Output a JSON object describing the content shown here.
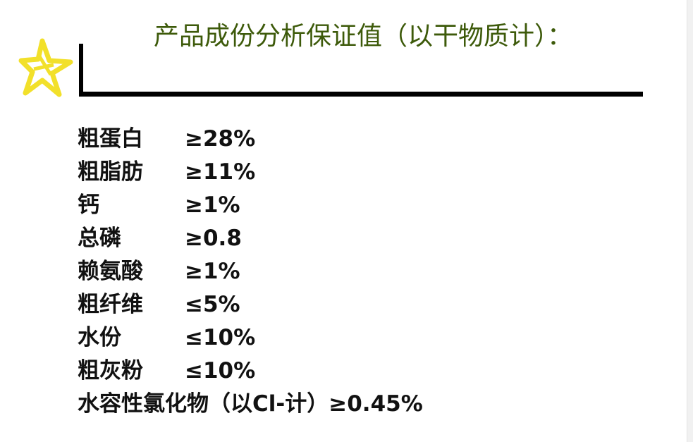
{
  "title": "产品成份分析保证值（以干物质计）：",
  "accent_color": "#3d5a0a",
  "star_color": "#f2e02a",
  "items": [
    {
      "name": "粗蛋白",
      "value": "≥28%"
    },
    {
      "name": "粗脂肪",
      "value": "≥11%"
    },
    {
      "name": "钙",
      "value": "≥1%"
    },
    {
      "name": "总磷",
      "value": "≥0.8"
    },
    {
      "name": "赖氨酸",
      "value": "≥1%"
    },
    {
      "name": "粗纤维",
      "value": "≤5%"
    },
    {
      "name": "水份",
      "value": "≤10%"
    },
    {
      "name": "粗灰粉",
      "value": "≤10%"
    },
    {
      "name": "水容性氯化物（以Cl-计）",
      "value": "≥0.45%"
    }
  ]
}
